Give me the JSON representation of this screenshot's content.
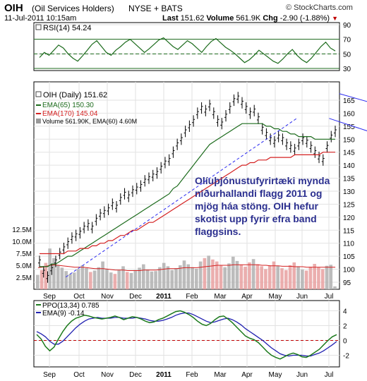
{
  "header": {
    "symbol": "OIH",
    "name": "(Oil Services Holders)",
    "exchange": "NYSE + BATS",
    "logo": "© StockCharts.com",
    "date": "11-Jul-2011 10:15am",
    "last_label": "Last",
    "last_value": "151.62",
    "volume_label": "Volume",
    "volume_value": "561.9K",
    "chg_label": "Chg",
    "chg_value": "-2.90 (-1.88%)",
    "chg_arrow": "▼"
  },
  "annotation": "Olíuþjónustufyrirtæki mynda niðurhallandi flagg 2011 og mjög háa stöng. OIH hefur skotist upp fyrir efra band flaggsins.",
  "colors": {
    "ema65": "#1c6b1c",
    "ema170": "#d42020",
    "ppo": "#1c7a1c",
    "ppo_signal": "#2020b0",
    "channel": "#2a2af0",
    "volume_up": "#b0b0b0",
    "volume_down": "#e8a0a0",
    "rsi": "#1c6b1c"
  },
  "chart_data": [
    {
      "type": "line",
      "title": "RSI(14) 54.24",
      "series": [
        {
          "name": "RSI(14)",
          "values": [
            45,
            52,
            48,
            55,
            62,
            58,
            50,
            44,
            40,
            47,
            55,
            63,
            68,
            60,
            52,
            48,
            55,
            60,
            66,
            70,
            64,
            58,
            52,
            57,
            63,
            69,
            72,
            66,
            60,
            56,
            62,
            68,
            64,
            58,
            52,
            60,
            67,
            71,
            65,
            59,
            55,
            50,
            44,
            38,
            42,
            48,
            55,
            50,
            45,
            40,
            37,
            43,
            50,
            56,
            48,
            42,
            38,
            44,
            52,
            60,
            66,
            58,
            54
          ]
        }
      ],
      "ylim": [
        30,
        90
      ],
      "y_ticks": [
        90,
        70,
        50,
        30
      ],
      "reference_lines": [
        70,
        50,
        30
      ]
    },
    {
      "type": "line",
      "title": "OIH (Daily) 151.62",
      "y_ticks": [
        165,
        160,
        155,
        150,
        145,
        140,
        135,
        130,
        125,
        120,
        115,
        110,
        105,
        100,
        95
      ],
      "ylim": [
        95,
        170
      ],
      "x_ticks": [
        "Sep",
        "Oct",
        "Nov",
        "Dec",
        "2011",
        "Feb",
        "Mar",
        "Apr",
        "May",
        "Jun",
        "Jul"
      ],
      "price": [
        103,
        99,
        97,
        100,
        103,
        106,
        108,
        110,
        112,
        113,
        114,
        116,
        117,
        116,
        119,
        121,
        122,
        123,
        125,
        124,
        127,
        129,
        128,
        130,
        131,
        132,
        134,
        135,
        136,
        137,
        139,
        141,
        142,
        145,
        148,
        150,
        153,
        155,
        157,
        160,
        162,
        161,
        163,
        160,
        157,
        156,
        159,
        162,
        165,
        166,
        164,
        162,
        160,
        161,
        158,
        154,
        152,
        150,
        149,
        151,
        150,
        148,
        147,
        146,
        148,
        150,
        149,
        147,
        145,
        143,
        142,
        147,
        151,
        153
      ],
      "series": [
        {
          "name": "EMA(65) 150.30",
          "values": [
            101,
            101,
            101,
            102,
            102,
            103,
            104,
            105,
            105,
            106,
            107,
            108,
            109,
            110,
            111,
            112,
            113,
            114,
            115,
            116,
            117,
            118,
            119,
            120,
            121,
            122,
            123,
            124,
            125,
            126,
            127,
            128,
            129,
            131,
            132,
            134,
            136,
            138,
            140,
            142,
            144,
            146,
            148,
            149,
            150,
            151,
            152,
            153,
            154,
            155,
            156,
            156,
            156,
            156,
            156,
            156,
            155,
            155,
            154,
            154,
            153,
            153,
            152,
            152,
            151,
            151,
            151,
            151,
            150,
            150,
            150,
            150,
            150,
            150
          ]
        },
        {
          "name": "EMA(170) 145.04",
          "values": [
            106,
            106,
            106,
            106,
            106,
            106,
            106,
            107,
            107,
            107,
            108,
            108,
            108,
            109,
            109,
            110,
            110,
            111,
            111,
            112,
            113,
            113,
            114,
            115,
            115,
            116,
            117,
            118,
            118,
            119,
            120,
            121,
            122,
            123,
            124,
            125,
            126,
            127,
            128,
            129,
            130,
            131,
            132,
            133,
            134,
            135,
            136,
            137,
            138,
            139,
            140,
            140,
            141,
            141,
            142,
            142,
            142,
            143,
            143,
            143,
            143,
            143,
            143,
            144,
            144,
            144,
            144,
            144,
            144,
            144,
            145,
            145,
            145,
            145
          ]
        }
      ],
      "channel": {
        "upper": [
          [
            148,
            167.5
          ],
          [
            223,
            151
          ]
        ],
        "lower": [
          [
            143,
            158
          ],
          [
            225,
            137
          ]
        ],
        "pole": [
          [
            13,
            97
          ],
          [
            127,
            158
          ]
        ]
      }
    },
    {
      "type": "bar",
      "title": "Volume 561.90K, EMA(60) 4.60M",
      "y_ticks": [
        "12.5M",
        "10.0M",
        "7.5M",
        "5.0M",
        "2.5M"
      ],
      "ylim": [
        0,
        12.5
      ],
      "values": [
        3.0,
        4.0,
        5.5,
        8.5,
        6.5,
        5.0,
        4.5,
        3.8,
        3.2,
        3.5,
        4.2,
        5.0,
        4.4,
        3.6,
        3.9,
        4.6,
        5.8,
        4.2,
        3.5,
        3.2,
        4.0,
        4.8,
        3.6,
        3.4,
        4.0,
        4.5,
        5.2,
        4.1,
        3.7,
        3.8,
        4.6,
        5.5,
        4.8,
        4.0,
        4.4,
        5.0,
        6.0,
        5.2,
        4.6,
        4.3,
        5.8,
        6.5,
        7.0,
        6.2,
        5.8,
        5.0,
        4.6,
        5.4,
        6.8,
        5.9,
        5.1,
        4.7,
        5.6,
        6.3,
        5.2,
        4.8,
        4.2,
        5.0,
        5.8,
        4.9,
        4.4,
        4.0,
        5.0,
        5.6,
        4.8,
        4.1,
        3.9,
        4.7,
        5.3,
        4.6,
        4.2,
        4.9,
        5.1,
        0.6
      ],
      "ema": [
        4.5,
        4.6,
        4.8,
        5.0,
        5.1,
        5.0,
        4.9,
        4.8,
        4.7,
        4.6,
        4.6,
        4.6,
        4.5,
        4.4,
        4.3,
        4.3,
        4.3,
        4.2,
        4.1,
        4.0,
        4.0,
        4.0,
        3.9,
        3.9,
        3.9,
        3.9,
        4.0,
        4.0,
        4.0,
        4.0,
        4.1,
        4.2,
        4.3,
        4.3,
        4.3,
        4.4,
        4.5,
        4.5,
        4.5,
        4.5,
        4.6,
        4.7,
        4.8,
        4.9,
        5.0,
        5.0,
        5.0,
        5.0,
        5.1,
        5.1,
        5.1,
        5.1,
        5.1,
        5.1,
        5.1,
        5.0,
        5.0,
        4.9,
        4.9,
        4.9,
        4.8,
        4.8,
        4.8,
        4.7,
        4.7,
        4.7,
        4.6,
        4.6,
        4.6,
        4.6,
        4.6,
        4.6,
        4.6,
        4.6
      ]
    },
    {
      "type": "line",
      "title": "PPO(13,34) 0.785",
      "y_ticks": [
        4,
        2,
        0,
        -2
      ],
      "ylim": [
        -3,
        5
      ],
      "x_ticks": [
        "Sep",
        "Oct",
        "Nov",
        "Dec",
        "2011",
        "Feb",
        "Mar",
        "Apr",
        "May",
        "Jun",
        "Jul"
      ],
      "series": [
        {
          "name": "PPO(13,34) 0.785",
          "values": [
            0.8,
            0.2,
            -0.8,
            -1.4,
            -0.9,
            0.2,
            1.2,
            2.0,
            2.6,
            3.0,
            3.2,
            3.4,
            3.3,
            3.1,
            3.0,
            2.9,
            3.0,
            3.1,
            3.3,
            3.1,
            2.8,
            3.0,
            3.2,
            3.1,
            2.9,
            2.6,
            2.4,
            2.5,
            2.8,
            3.0,
            3.3,
            3.6,
            3.9,
            4.0,
            3.8,
            3.5,
            3.1,
            2.6,
            2.2,
            2.0,
            2.3,
            2.8,
            3.2,
            3.3,
            2.9,
            2.4,
            1.8,
            1.2,
            0.6,
            0.3,
            0.1,
            -0.3,
            -0.9,
            -1.5,
            -2.0,
            -2.3,
            -2.5,
            -2.2,
            -1.9,
            -1.7,
            -1.9,
            -2.2,
            -2.3,
            -2.0,
            -1.6,
            -1.2,
            -0.6,
            0.0,
            0.5,
            0.785
          ]
        },
        {
          "name": "EMA(9) -0.14",
          "values": [
            1.2,
            0.9,
            0.5,
            -0.1,
            -0.5,
            -0.5,
            -0.1,
            0.5,
            1.1,
            1.7,
            2.2,
            2.6,
            2.9,
            3.0,
            3.1,
            3.0,
            3.0,
            3.0,
            3.1,
            3.1,
            3.0,
            3.0,
            3.0,
            3.1,
            3.0,
            2.9,
            2.7,
            2.6,
            2.6,
            2.7,
            2.9,
            3.1,
            3.4,
            3.6,
            3.7,
            3.7,
            3.5,
            3.2,
            2.9,
            2.6,
            2.4,
            2.5,
            2.7,
            2.9,
            3.0,
            2.8,
            2.5,
            2.1,
            1.6,
            1.2,
            0.8,
            0.4,
            0.0,
            -0.5,
            -1.0,
            -1.4,
            -1.8,
            -2.0,
            -2.1,
            -2.0,
            -2.0,
            -2.0,
            -2.1,
            -2.1,
            -1.9,
            -1.7,
            -1.4,
            -1.0,
            -0.6,
            -0.14
          ]
        }
      ],
      "reference_lines": [
        0
      ]
    }
  ]
}
